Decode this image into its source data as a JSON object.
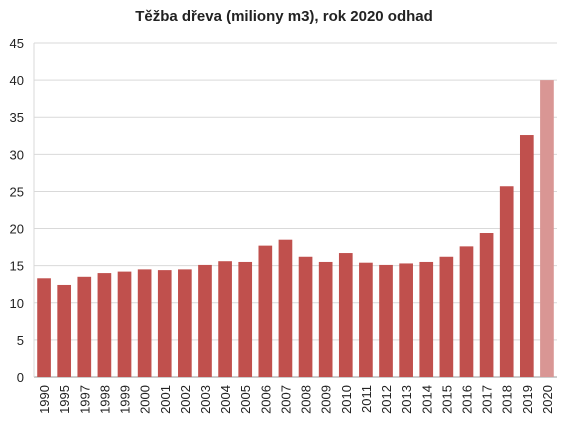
{
  "chart_data": {
    "type": "bar",
    "title": "Těžba dřeva (miliony m3), rok 2020 odhad",
    "xlabel": "",
    "ylabel": "",
    "ylim": [
      0,
      45
    ],
    "yticks": [
      0,
      5,
      10,
      15,
      20,
      25,
      30,
      35,
      40,
      45
    ],
    "grid": true,
    "legend": "none",
    "categories": [
      "1990",
      "1995",
      "1997",
      "1998",
      "1999",
      "2000",
      "2001",
      "2002",
      "2003",
      "2004",
      "2005",
      "2006",
      "2007",
      "2008",
      "2009",
      "2010",
      "2011",
      "2012",
      "2013",
      "2014",
      "2015",
      "2016",
      "2017",
      "2018",
      "2019",
      "2020"
    ],
    "series": [
      {
        "values": [
          13.3,
          12.4,
          13.5,
          14.0,
          14.2,
          14.5,
          14.4,
          14.5,
          15.1,
          15.6,
          15.5,
          17.7,
          18.5,
          16.2,
          15.5,
          16.7,
          15.4,
          15.1,
          15.3,
          15.5,
          16.2,
          17.6,
          19.4,
          25.7,
          32.6,
          40.0
        ],
        "color": "#c0504d"
      }
    ],
    "estimate_color": "#d99694",
    "estimate_category": "2020"
  }
}
